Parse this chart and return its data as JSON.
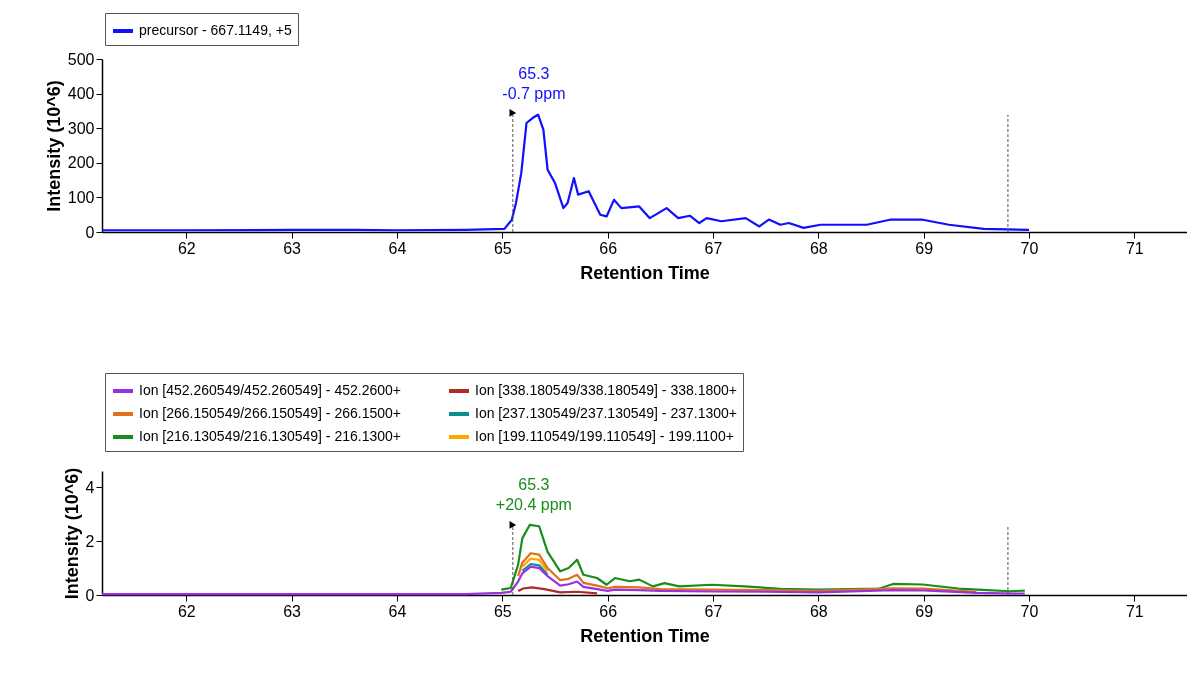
{
  "chart_data": [
    {
      "type": "line",
      "xlabel": "Retention Time",
      "ylabel": "Intensity (10^6)",
      "xlim": [
        61.2,
        71.5
      ],
      "xticks": [
        62,
        63,
        64,
        65,
        66,
        67,
        68,
        69,
        70,
        71
      ],
      "ylim": [
        0,
        500
      ],
      "yticks": [
        0,
        100,
        200,
        300,
        400,
        500
      ],
      "legend": "top left",
      "series": [
        {
          "name": "precursor - 667.1149, +5",
          "color": "#1010ff",
          "x": [
            61.2,
            62.0,
            63.0,
            63.6,
            64.0,
            64.65,
            65.02,
            65.09,
            65.13,
            65.18,
            65.23,
            65.29,
            65.34,
            65.39,
            65.43,
            65.5,
            65.58,
            65.62,
            65.68,
            65.72,
            65.82,
            65.93,
            65.99,
            66.06,
            66.13,
            66.3,
            66.4,
            66.56,
            66.67,
            66.78,
            66.87,
            66.94,
            67.08,
            67.31,
            67.44,
            67.53,
            67.64,
            67.72,
            67.86,
            68.02,
            68.46,
            68.69,
            68.98,
            69.24,
            69.57,
            70.0
          ],
          "values": [
            5,
            5,
            6,
            6,
            5,
            6,
            9,
            35,
            84,
            170,
            315,
            330,
            339,
            296,
            180,
            142,
            69,
            84,
            156,
            108,
            118,
            50,
            45,
            93,
            69,
            74,
            40,
            69,
            40,
            47,
            26,
            40,
            31,
            40,
            16,
            36,
            21,
            26,
            12,
            21,
            21,
            36,
            36,
            21,
            9,
            6
          ]
        }
      ],
      "ref_lines": [
        {
          "axis": "x",
          "value": 65.1,
          "color": "#555555",
          "line_style": "dashed"
        },
        {
          "axis": "x",
          "value": 69.8,
          "color": "#555555",
          "line_style": "dashed"
        }
      ],
      "annotations": [
        {
          "text": "65.3\n-0.7 ppm",
          "x": 65.3,
          "y": 340
        }
      ]
    },
    {
      "type": "line",
      "xlabel": "Retention Time",
      "ylabel": "Intensity (10^6)",
      "xlim": [
        61.2,
        71.5
      ],
      "xticks": [
        62,
        63,
        64,
        65,
        66,
        67,
        68,
        69,
        70,
        71
      ],
      "ylim": [
        0,
        4.6
      ],
      "yticks": [
        0,
        2,
        4
      ],
      "legend": "top left",
      "series": [
        {
          "name": "Ion [452.260549/452.260549] - 452.2600+",
          "color": "#9b30e0",
          "x": [
            61.2,
            63.0,
            64.65,
            64.99,
            65.08,
            65.15,
            65.19,
            65.27,
            65.35,
            65.43,
            65.55,
            65.63,
            65.71,
            65.77,
            65.9,
            66.0,
            66.07,
            66.3,
            66.5,
            66.99,
            67.5,
            68.0,
            68.71,
            69.0,
            69.5,
            69.96
          ],
          "values": [
            0.03,
            0.03,
            0.03,
            0.08,
            0.12,
            0.5,
            0.8,
            1.05,
            1.0,
            0.7,
            0.35,
            0.4,
            0.5,
            0.3,
            0.22,
            0.15,
            0.2,
            0.18,
            0.15,
            0.13,
            0.12,
            0.1,
            0.18,
            0.17,
            0.08,
            0.05
          ]
        },
        {
          "name": "Ion [338.180549/338.180549] - 338.1800+",
          "color": "#b02a2a",
          "x": [
            65.15,
            65.2,
            65.28,
            65.4,
            65.55,
            65.71,
            65.9
          ],
          "values": [
            0.15,
            0.24,
            0.28,
            0.22,
            0.1,
            0.12,
            0.06
          ]
        },
        {
          "name": "Ion [266.150549/266.150549] - 266.1500+",
          "color": "#e0701a",
          "x": [
            65.15,
            65.19,
            65.27,
            65.35,
            65.43,
            65.55,
            65.63,
            65.71,
            65.77,
            65.9,
            66.0,
            66.07,
            66.3,
            66.5,
            66.99,
            67.5,
            68.0,
            68.71,
            69.0,
            69.5
          ],
          "values": [
            0.7,
            1.2,
            1.55,
            1.5,
            1.0,
            0.55,
            0.6,
            0.75,
            0.45,
            0.35,
            0.25,
            0.3,
            0.28,
            0.22,
            0.2,
            0.18,
            0.15,
            0.25,
            0.24,
            0.12
          ]
        },
        {
          "name": "Ion [237.130549/237.130549] - 237.1300+",
          "color": "#0a8f8f",
          "x": [
            65.19,
            65.27,
            65.35,
            65.43
          ],
          "values": [
            0.9,
            1.15,
            1.1,
            0.75
          ]
        },
        {
          "name": "Ion [216.130549/216.130549] - 216.1300+",
          "color": "#1a8c1a",
          "x": [
            64.99,
            65.08,
            65.15,
            65.19,
            65.26,
            65.35,
            65.43,
            65.55,
            65.63,
            65.71,
            65.77,
            65.9,
            65.99,
            66.07,
            66.21,
            66.3,
            66.43,
            66.54,
            66.68,
            66.99,
            67.3,
            67.64,
            68.0,
            68.58,
            68.71,
            68.99,
            69.33,
            69.51,
            69.82,
            69.96
          ],
          "values": [
            0.2,
            0.26,
            1.12,
            2.1,
            2.6,
            2.55,
            1.6,
            0.88,
            1.0,
            1.31,
            0.75,
            0.63,
            0.38,
            0.63,
            0.51,
            0.57,
            0.32,
            0.44,
            0.32,
            0.38,
            0.32,
            0.23,
            0.2,
            0.24,
            0.41,
            0.39,
            0.24,
            0.2,
            0.14,
            0.16
          ]
        },
        {
          "name": "Ion [199.110549/199.110549] - 199.1100+",
          "color": "#ffa500",
          "x": [
            65.19,
            65.27,
            65.35,
            65.43
          ],
          "values": [
            1.05,
            1.35,
            1.3,
            0.88
          ]
        }
      ],
      "ref_lines": [
        {
          "axis": "x",
          "value": 65.1,
          "color": "#555555",
          "line_style": "dashed"
        },
        {
          "axis": "x",
          "value": 69.8,
          "color": "#555555",
          "line_style": "dashed"
        }
      ],
      "annotations": [
        {
          "text": "65.3\n+20.4 ppm",
          "x": 65.3,
          "y": 2.6
        }
      ]
    }
  ]
}
